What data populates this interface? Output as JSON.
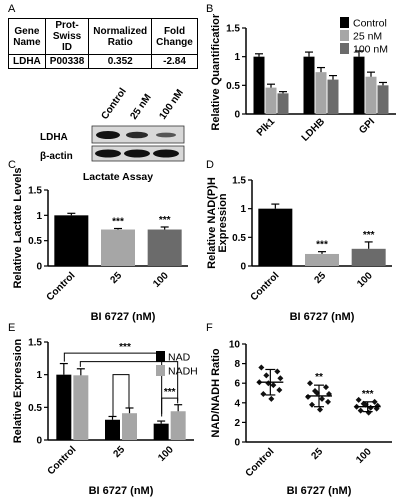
{
  "panel_letters": [
    "A",
    "B",
    "C",
    "D",
    "E",
    "F"
  ],
  "table": {
    "headers": [
      [
        "Gene",
        "Name"
      ],
      [
        "Prot-",
        "Swiss",
        "ID"
      ],
      [
        "Normalized",
        "Ratio"
      ],
      [
        "Fold",
        "Change"
      ]
    ],
    "row": [
      "LDHA",
      "P00338",
      "0.352",
      "-2.84"
    ]
  },
  "blot": {
    "lanes": [
      "Control",
      "25 nM",
      "100 nM"
    ],
    "rows": [
      "LDHA",
      "β-actin"
    ]
  },
  "colors": {
    "control": "#000000",
    "nm25": "#a6a6a6",
    "nm100": "#6b6b6b",
    "nadh": "#a6a6a6"
  },
  "chart_data": [
    {
      "panel": "B",
      "type": "bar",
      "categories": [
        "Plk1",
        "LDHB",
        "GPI"
      ],
      "ylabel": "Relative Quantification",
      "ylim": [
        0,
        1.5
      ],
      "yticks": [
        0,
        0.5,
        1,
        1.5
      ],
      "legend_position": "top-right",
      "series": [
        {
          "name": "Control",
          "values": [
            1.0,
            1.0,
            1.0
          ],
          "errors": [
            0.05,
            0.08,
            0.1
          ]
        },
        {
          "name": "25 nM",
          "values": [
            0.46,
            0.73,
            0.65
          ],
          "errors": [
            0.06,
            0.08,
            0.08
          ]
        },
        {
          "name": "100 nM",
          "values": [
            0.36,
            0.6,
            0.5
          ],
          "errors": [
            0.03,
            0.07,
            0.05
          ]
        }
      ]
    },
    {
      "panel": "C",
      "type": "bar",
      "title": "Lactate Assay",
      "categories": [
        "Control",
        "25",
        "100"
      ],
      "xlabel": "BI 6727 (nM)",
      "ylabel": "Relative Lactate Levels",
      "ylim": [
        0,
        1.5
      ],
      "yticks": [
        0,
        0.5,
        1,
        1.5
      ],
      "values": [
        1.0,
        0.72,
        0.72
      ],
      "errors": [
        0.04,
        0.02,
        0.05
      ],
      "annotations": [
        "",
        "***",
        "***"
      ]
    },
    {
      "panel": "D",
      "type": "bar",
      "categories": [
        "Control",
        "25",
        "100"
      ],
      "xlabel": "BI 6727 (nM)",
      "ylabel": "Relative NAD(P)H Expression",
      "ylim": [
        0,
        1.5
      ],
      "yticks": [
        0,
        0.5,
        1,
        1.5
      ],
      "values": [
        1.0,
        0.21,
        0.3
      ],
      "errors": [
        0.08,
        0.04,
        0.12
      ],
      "annotations": [
        "",
        "***",
        "***"
      ]
    },
    {
      "panel": "E",
      "type": "bar",
      "categories": [
        "Control",
        "25",
        "100"
      ],
      "xlabel": "BI 6727 (nM)",
      "ylabel": "Relative Expression",
      "ylim": [
        0,
        1.5
      ],
      "yticks": [
        0,
        0.5,
        1,
        1.5
      ],
      "legend_position": "top-right",
      "series": [
        {
          "name": "NAD",
          "values": [
            1.0,
            0.31,
            0.25
          ],
          "errors": [
            0.17,
            0.05,
            0.04
          ]
        },
        {
          "name": "NADH",
          "values": [
            0.99,
            0.41,
            0.44
          ],
          "errors": [
            0.1,
            0.08,
            0.1
          ]
        }
      ],
      "annotations": [
        "***",
        "***"
      ]
    },
    {
      "panel": "F",
      "type": "scatter",
      "categories": [
        "Control",
        "25",
        "100"
      ],
      "xlabel": "BI 6727 (nM)",
      "ylabel": "NAD/NADH Ratio",
      "ylim": [
        0,
        10
      ],
      "yticks": [
        0,
        2,
        4,
        6,
        8,
        10
      ],
      "means": [
        6.1,
        4.7,
        3.6
      ],
      "sd": [
        1.3,
        1.1,
        0.5
      ],
      "annotations": [
        "",
        "**",
        "***"
      ],
      "points": [
        [
          7.6,
          7.2,
          6.8,
          6.5,
          6.1,
          5.8,
          5.3,
          4.9,
          4.4,
          6.0
        ],
        [
          6.0,
          5.6,
          5.2,
          4.9,
          4.6,
          4.4,
          4.1,
          3.8,
          3.3,
          5.0
        ],
        [
          4.3,
          4.1,
          3.9,
          3.7,
          3.6,
          3.5,
          3.4,
          3.2,
          3.0,
          3.8
        ]
      ]
    }
  ]
}
